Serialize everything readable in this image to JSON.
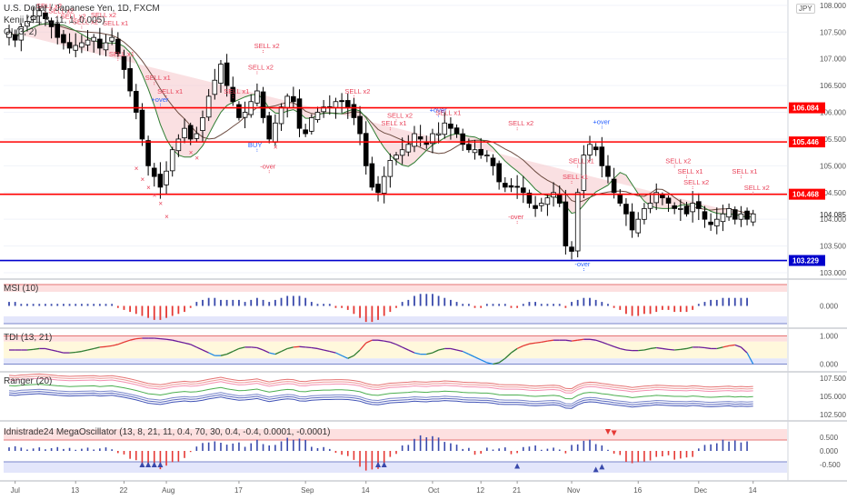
{
  "header": {
    "symbol_title": "U.S. Dollar / Japanese Yen, 1D, FXCM",
    "indicator_1": "Kenji (21, 8, 11, 1, 0.005)",
    "indicator_2": "OI (3, 2)",
    "currency_badge": "JPY"
  },
  "colors": {
    "up_candle": "#ffffff",
    "down_candle": "#000000",
    "level_red": "#ff0000",
    "level_blue": "#0000cc",
    "sell_text": "#e8435a",
    "buy_text": "#2962ff",
    "cloud_fill": "#f5c6cb",
    "green_line": "#2e7d32"
  },
  "chart_data": [
    {
      "panel": "price",
      "type": "candlestick",
      "ylim": [
        103.0,
        108.1
      ],
      "y_ticks": [
        "108.000",
        "107.500",
        "107.000",
        "106.500",
        "106.000",
        "105.500",
        "105.000",
        "104.500",
        "104.000",
        "103.500",
        "103.000"
      ],
      "x_ticks": [
        "Jul",
        "13",
        "22",
        "Aug",
        "17",
        "Sep",
        "14",
        "Oct",
        "12",
        "21",
        "Nov",
        "16",
        "Dec",
        "14"
      ],
      "x_tick_index": [
        1,
        11,
        19,
        26,
        38,
        49,
        59,
        70,
        78,
        84,
        93,
        104,
        114,
        123
      ],
      "horizontal_levels": [
        {
          "value": 106.084,
          "label": "106.084",
          "color": "#ff0000"
        },
        {
          "value": 105.446,
          "label": "105.446",
          "color": "#ff0000"
        },
        {
          "value": 104.468,
          "label": "104.468",
          "color": "#ff0000"
        },
        {
          "value": 103.229,
          "label": "103.229",
          "color": "#0000cc"
        }
      ],
      "last_price": "104.085",
      "closes": [
        107.5,
        107.35,
        107.6,
        107.7,
        107.8,
        107.9,
        107.75,
        107.6,
        107.4,
        107.3,
        107.2,
        107.25,
        107.3,
        107.35,
        107.4,
        107.2,
        107.3,
        107.4,
        107.1,
        106.8,
        106.4,
        106.0,
        105.5,
        105.0,
        104.8,
        104.6,
        104.9,
        105.3,
        105.5,
        105.7,
        105.5,
        105.6,
        105.9,
        106.3,
        106.6,
        106.9,
        106.5,
        106.2,
        105.9,
        106.0,
        106.2,
        106.4,
        105.9,
        105.5,
        105.8,
        106.1,
        106.3,
        106.2,
        105.7,
        105.6,
        105.9,
        106.0,
        106.1,
        106.1,
        106.2,
        106.2,
        106.1,
        105.9,
        105.6,
        105.0,
        104.6,
        104.5,
        104.8,
        105.1,
        105.2,
        105.3,
        105.4,
        105.6,
        105.5,
        105.4,
        105.6,
        105.6,
        105.8,
        105.7,
        105.6,
        105.4,
        105.3,
        105.3,
        105.2,
        105.2,
        105.0,
        104.7,
        104.6,
        104.6,
        104.6,
        104.5,
        104.3,
        104.2,
        104.3,
        104.4,
        104.5,
        104.3,
        103.5,
        103.4,
        104.5,
        105.2,
        105.4,
        105.3,
        105.0,
        104.8,
        104.5,
        104.3,
        104.1,
        103.8,
        104.0,
        104.2,
        104.3,
        104.5,
        104.4,
        104.3,
        104.2,
        104.2,
        104.1,
        104.3,
        104.2,
        104.0,
        103.9,
        104.0,
        104.1,
        104.2,
        104.0,
        104.1,
        104.0,
        104.1
      ],
      "annotations": [
        {
          "text": "SELL x2",
          "i": 6,
          "price": 107.95,
          "kind": "sell"
        },
        {
          "text": "SELL x2",
          "i": 8,
          "price": 107.85,
          "kind": "sell"
        },
        {
          "text": "SELL x2",
          "i": 10,
          "price": 107.75,
          "kind": "sell"
        },
        {
          "text": "SELL x2",
          "i": 12,
          "price": 107.65,
          "kind": "sell"
        },
        {
          "text": "SELL x2",
          "i": 15,
          "price": 107.78,
          "kind": "sell"
        },
        {
          "text": "SELL x1",
          "i": 17,
          "price": 107.62,
          "kind": "sell"
        },
        {
          "text": "SELL x1",
          "i": 18,
          "price": 107.05,
          "kind": "sell"
        },
        {
          "text": "SELL x1",
          "i": 24,
          "price": 106.6,
          "kind": "sell"
        },
        {
          "text": "SELL x1",
          "i": 26,
          "price": 106.35,
          "kind": "sell"
        },
        {
          "text": "+over",
          "i": 25,
          "price": 106.2,
          "kind": "buy"
        },
        {
          "text": "SELL x1",
          "i": 37,
          "price": 106.35,
          "kind": "sell"
        },
        {
          "text": "SELL x2",
          "i": 42,
          "price": 107.2,
          "kind": "sell"
        },
        {
          "text": "SELL x2",
          "i": 41,
          "price": 106.8,
          "kind": "sell"
        },
        {
          "text": "BUY",
          "i": 41,
          "price": 105.35,
          "kind": "buy"
        },
        {
          "text": "-over",
          "i": 43,
          "price": 104.95,
          "kind": "sell"
        },
        {
          "text": "SELL x2",
          "i": 57,
          "price": 106.35,
          "kind": "sell"
        },
        {
          "text": "SELL x2",
          "i": 64,
          "price": 105.9,
          "kind": "sell"
        },
        {
          "text": "SELL x1",
          "i": 63,
          "price": 105.75,
          "kind": "sell"
        },
        {
          "text": "+over",
          "i": 71,
          "price": 106.0,
          "kind": "buy"
        },
        {
          "text": "SELL x1",
          "i": 72,
          "price": 105.95,
          "kind": "sell"
        },
        {
          "text": "SELL x2",
          "i": 84,
          "price": 105.75,
          "kind": "sell"
        },
        {
          "text": "-over",
          "i": 84,
          "price": 104.0,
          "kind": "sell"
        },
        {
          "text": "SELL x1",
          "i": 94,
          "price": 105.05,
          "kind": "sell"
        },
        {
          "text": "SELL x1",
          "i": 93,
          "price": 104.75,
          "kind": "sell"
        },
        {
          "text": "-over",
          "i": 95,
          "price": 103.12,
          "kind": "buy"
        },
        {
          "text": "+over",
          "i": 98,
          "price": 105.78,
          "kind": "buy"
        },
        {
          "text": "SELL x2",
          "i": 110,
          "price": 105.05,
          "kind": "sell"
        },
        {
          "text": "SELL x1",
          "i": 112,
          "price": 104.85,
          "kind": "sell"
        },
        {
          "text": "SELL x2",
          "i": 113,
          "price": 104.65,
          "kind": "sell"
        },
        {
          "text": "SELL x1",
          "i": 121,
          "price": 104.85,
          "kind": "sell"
        },
        {
          "text": "SELL x2",
          "i": 123,
          "price": 104.55,
          "kind": "sell"
        }
      ]
    },
    {
      "panel": "msi",
      "type": "histogram",
      "title": "MSI (10)",
      "y_ticks": [
        "0.000"
      ],
      "values": [
        0.2,
        0.2,
        0.1,
        0.1,
        0.1,
        0.1,
        0.1,
        0.1,
        0.1,
        0.1,
        0.1,
        0.1,
        0.1,
        0.1,
        0.1,
        0.1,
        0.1,
        0.1,
        -0.1,
        -0.2,
        -0.3,
        -0.4,
        -0.5,
        -0.6,
        -0.7,
        -0.7,
        -0.6,
        -0.5,
        -0.4,
        -0.3,
        -0.1,
        0.2,
        0.3,
        0.4,
        0.4,
        0.3,
        0.3,
        0.3,
        0.3,
        0.2,
        0.3,
        0.4,
        0.3,
        0.2,
        0.3,
        0.4,
        0.5,
        0.5,
        0.5,
        0.4,
        0.2,
        0.1,
        0.1,
        0.1,
        -0.1,
        -0.1,
        -0.2,
        -0.4,
        -0.6,
        -0.8,
        -0.8,
        -0.7,
        -0.5,
        -0.3,
        -0.1,
        0.2,
        0.3,
        0.5,
        0.6,
        0.6,
        0.6,
        0.5,
        0.4,
        0.3,
        0.2,
        0.1,
        0.1,
        -0.1,
        -0.1,
        0.1,
        0.1,
        0.1,
        0.1,
        -0.1,
        -0.1,
        0.1,
        0.2,
        0.2,
        0.1,
        0.1,
        0.1,
        0.1,
        -0.1,
        0.2,
        0.3,
        0.4,
        0.4,
        0.3,
        0.2,
        0.1,
        -0.1,
        -0.2,
        -0.4,
        -0.5,
        -0.5,
        -0.4,
        -0.4,
        -0.3,
        -0.2,
        -0.2,
        -0.3,
        -0.3,
        -0.3,
        -0.2,
        0.1,
        0.2,
        0.3,
        0.3,
        0.4,
        0.4,
        0.4,
        0.4,
        0.4
      ]
    },
    {
      "panel": "tdi",
      "type": "line",
      "title": "TDI (13, 21)",
      "y_ticks": [
        "1.000",
        "0.000"
      ],
      "ylim": [
        -0.05,
        1.05
      ],
      "values": [
        0.5,
        0.5,
        0.5,
        0.5,
        0.52,
        0.55,
        0.55,
        0.5,
        0.45,
        0.4,
        0.4,
        0.42,
        0.45,
        0.5,
        0.55,
        0.6,
        0.62,
        0.65,
        0.7,
        0.78,
        0.85,
        0.9,
        0.92,
        0.92,
        0.92,
        0.9,
        0.88,
        0.85,
        0.8,
        0.75,
        0.7,
        0.6,
        0.5,
        0.4,
        0.3,
        0.3,
        0.35,
        0.45,
        0.55,
        0.6,
        0.6,
        0.58,
        0.5,
        0.4,
        0.35,
        0.45,
        0.55,
        0.6,
        0.62,
        0.6,
        0.58,
        0.55,
        0.5,
        0.45,
        0.4,
        0.3,
        0.2,
        0.3,
        0.5,
        0.75,
        0.85,
        0.85,
        0.82,
        0.78,
        0.7,
        0.6,
        0.5,
        0.4,
        0.35,
        0.35,
        0.4,
        0.5,
        0.55,
        0.55,
        0.5,
        0.45,
        0.35,
        0.25,
        0.15,
        0.05,
        0.0,
        0.05,
        0.2,
        0.4,
        0.55,
        0.65,
        0.72,
        0.75,
        0.78,
        0.82,
        0.85,
        0.85,
        0.85,
        0.82,
        0.85,
        0.88,
        0.88,
        0.85,
        0.78,
        0.7,
        0.62,
        0.55,
        0.5,
        0.48,
        0.48,
        0.5,
        0.55,
        0.58,
        0.55,
        0.52,
        0.5,
        0.52,
        0.55,
        0.6,
        0.6,
        0.58,
        0.55,
        0.55,
        0.6,
        0.65,
        0.68,
        0.6,
        0.4,
        0.0
      ]
    },
    {
      "panel": "ranger",
      "type": "band_lines",
      "title": "Ranger (20)",
      "y_ticks": [
        "107.500",
        "105.000",
        "102.500"
      ],
      "ylim": [
        102.0,
        108.0
      ]
    },
    {
      "panel": "megaosc",
      "type": "histogram",
      "title": "Idnistrade24 MegaOscillator (13, 8, 21, 11, 0.4, 70, 30, 0.4, -0.4, 0.0001, -0.0001)",
      "y_ticks": [
        "0.500",
        "0.000",
        "-0.500"
      ],
      "ylim": [
        -0.8,
        0.8
      ]
    }
  ]
}
